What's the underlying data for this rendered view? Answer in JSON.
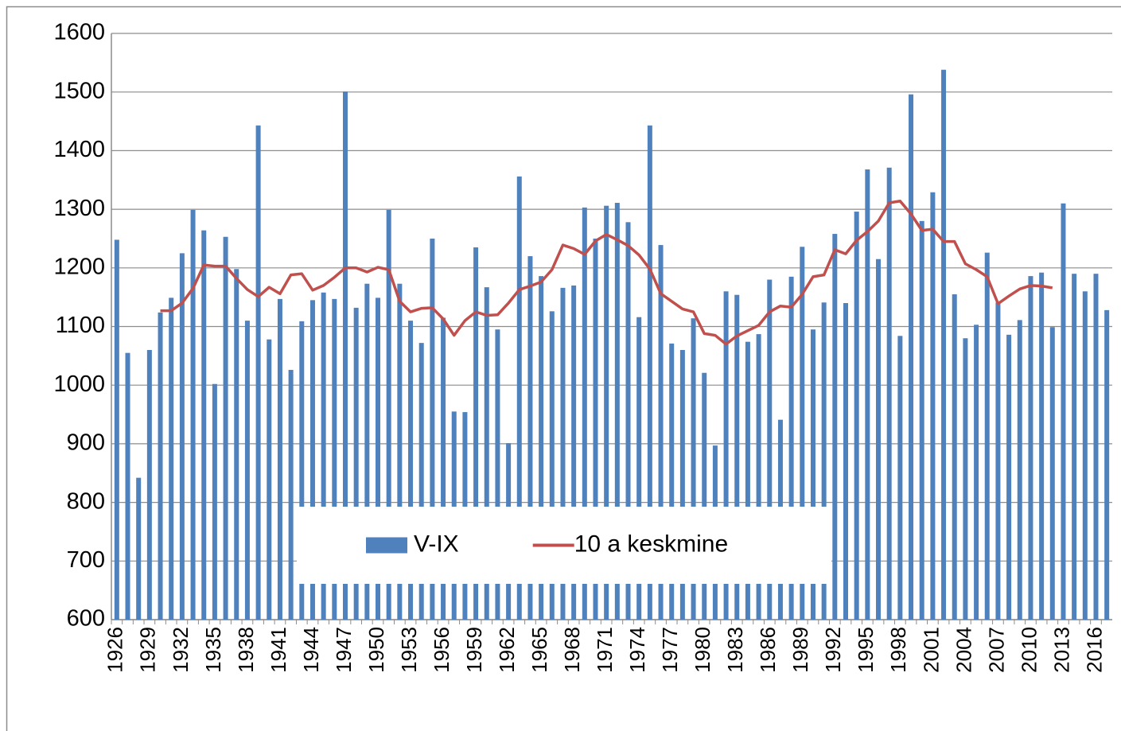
{
  "chart_data": {
    "type": "bar",
    "categories": [
      "1926",
      null,
      null,
      "1929",
      null,
      null,
      "1932",
      null,
      null,
      "1935",
      null,
      null,
      "1938",
      null,
      null,
      "1941",
      null,
      null,
      "1944",
      null,
      null,
      "1947",
      null,
      null,
      "1950",
      null,
      null,
      "1953",
      null,
      null,
      "1956",
      null,
      null,
      "1959",
      null,
      null,
      "1962",
      null,
      null,
      "1965",
      null,
      null,
      "1968",
      null,
      null,
      "1971",
      null,
      null,
      "1974",
      null,
      null,
      "1977",
      null,
      null,
      "1980",
      null,
      null,
      "1983",
      null,
      null,
      "1986",
      null,
      null,
      "1989",
      null,
      null,
      "1992",
      null,
      null,
      "1995",
      null,
      null,
      "1998",
      null,
      null,
      "2001",
      null,
      null,
      "2004",
      null,
      null,
      "2007",
      null,
      null,
      "2010",
      null,
      null,
      "2013",
      null,
      null,
      "2016",
      null
    ],
    "series": [
      {
        "name": "V-IX",
        "type": "bar",
        "color": "#4f81bd",
        "values": [
          1248,
          1055,
          842,
          1060,
          1124,
          1149,
          1225,
          1299,
          1264,
          1002,
          1253,
          1198,
          1110,
          1443,
          1078,
          1147,
          1026,
          1109,
          1145,
          1158,
          1147,
          1501,
          1132,
          1173,
          1149,
          1299,
          1173,
          1110,
          1072,
          1250,
          1115,
          955,
          954,
          1235,
          1167,
          1095,
          901,
          1356,
          1220,
          1186,
          1126,
          1166,
          1170,
          1303,
          1250,
          1306,
          1311,
          1278,
          1116,
          1443,
          1239,
          1071,
          1060,
          1114,
          1021,
          897,
          1160,
          1154,
          1074,
          1087,
          1180,
          941,
          1185,
          1236,
          1095,
          1141,
          1258,
          1140,
          1296,
          1368,
          1215,
          1371,
          1084,
          1496,
          1280,
          1329,
          1538,
          1155,
          1080,
          1103,
          1226,
          1141,
          1086,
          1111,
          1186,
          1192,
          1099,
          1310,
          1190,
          1160,
          1190,
          1128
        ]
      },
      {
        "name": "10 a keskmine",
        "type": "line",
        "color": "#c0504d",
        "values": [
          null,
          null,
          null,
          null,
          1127,
          1127,
          1140,
          1165,
          1205,
          1203,
          1203,
          1182,
          1163,
          1151,
          1167,
          1156,
          1188,
          1190,
          1162,
          1170,
          1184,
          1200,
          1200,
          1193,
          1201,
          1197,
          1143,
          1125,
          1131,
          1132,
          1113,
          1085,
          1110,
          1125,
          1119,
          1120,
          1140,
          1163,
          1169,
          1176,
          1197,
          1239,
          1233,
          1223,
          1246,
          1257,
          1248,
          1238,
          1222,
          1198,
          1156,
          1143,
          1130,
          1125,
          1088,
          1085,
          1070,
          1084,
          1093,
          1102,
          1125,
          1135,
          1133,
          1155,
          1185,
          1188,
          1231,
          1224,
          1247,
          1262,
          1280,
          1311,
          1314,
          1292,
          1264,
          1266,
          1245,
          1245,
          1207,
          1197,
          1185,
          1139,
          1152,
          1164,
          1170,
          1169,
          1166,
          null,
          null,
          null,
          null,
          null
        ]
      }
    ],
    "ylim": [
      600,
      1600
    ],
    "yticks": [
      600,
      700,
      800,
      900,
      1000,
      1100,
      1200,
      1300,
      1400,
      1500,
      1600
    ],
    "grid": true,
    "legend": "bottom"
  }
}
